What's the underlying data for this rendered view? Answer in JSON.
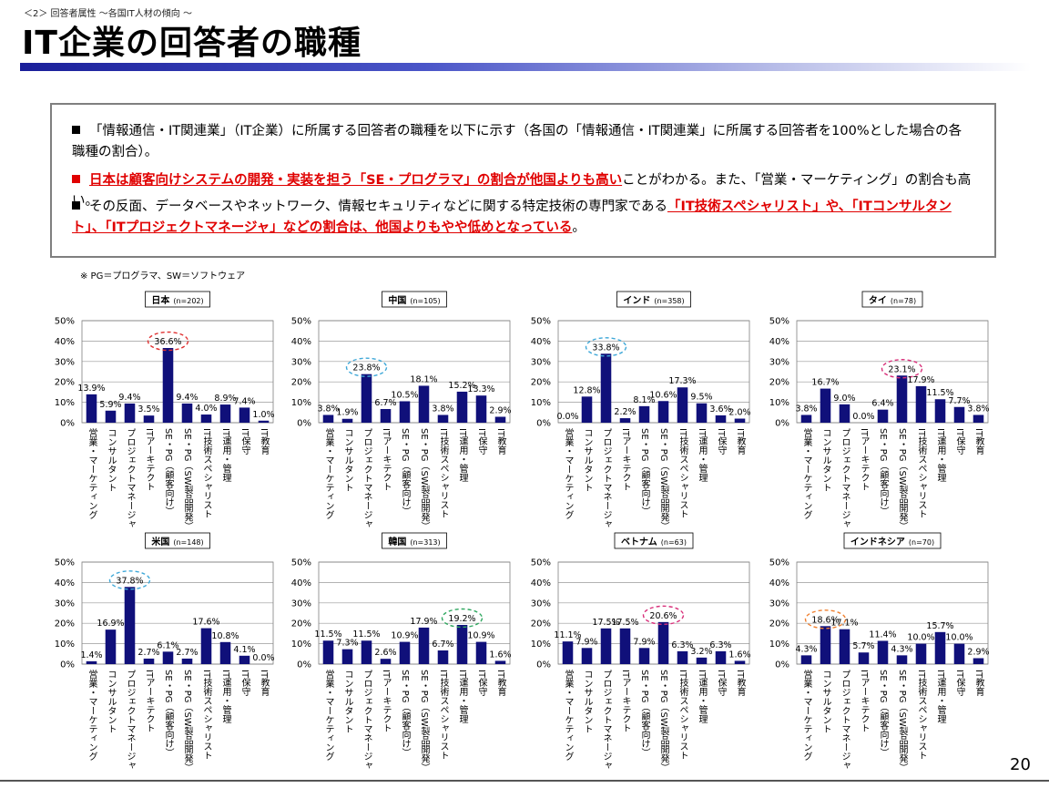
{
  "breadcrumb": "＜2＞ 回答者属性 ～各国IT人材の傾向 ～",
  "page_title": "IT企業の回答者の職種",
  "bullets": [
    {
      "pre": "「情報通信・IT関連業」（IT企業）に所属する回答者の職種を以下に示す（各国の「情報通信・IT関連業」に所属する回答者を100%とした場合の各職種の割合）。",
      "hl": "",
      "post": ""
    },
    {
      "pre": "",
      "hl": "日本は顧客向けシステムの開発・実装を担う「SE・プログラマ」の割合が他国よりも高い",
      "post": "ことがわかる。また、「営業・マーケティング」の割合も高い。"
    },
    {
      "pre": "その反面、データベースやネットワーク、情報セキュリティなどに関する特定技術の専門家である",
      "hl": "「IT技術スペシャリスト」や、「ITコンサルタント」、「ITプロジェクトマネージャ」などの割合は、他国よりもやや低めとなっている",
      "post": "。"
    }
  ],
  "note": "※ PG＝プログラマ、SW＝ソフトウェア",
  "page_number": "20",
  "colors": {
    "bar": "#10107a",
    "highlight": "#e00000",
    "title_bar": "#1a1f9a"
  },
  "chart_data": [
    {
      "type": "bar",
      "title": "日本",
      "n": "(n=202)",
      "ylim": [
        0,
        50
      ],
      "ticks": [
        "0%",
        "10%",
        "20%",
        "30%",
        "40%",
        "50%"
      ],
      "categories": [
        "営業・マーケティング",
        "コンサルタント",
        "プロジェクトマネージャ",
        "ITアーキテクト",
        "SE・PG（顧客向け）",
        "SE・PG（SW製品開発）",
        "IT技術スペシャリスト",
        "IT運用・管理",
        "IT保守",
        "IT教育"
      ],
      "values": [
        13.9,
        5.9,
        9.4,
        3.5,
        36.6,
        9.4,
        4.0,
        8.9,
        7.4,
        1.0
      ],
      "labels": [
        "13.9%",
        "5.9%",
        "9.4%",
        "3.5%",
        "36.6%",
        "9.4%",
        "4.0%",
        "8.9%",
        "7.4%",
        "1.0%"
      ],
      "highlight": 4,
      "highlight_color": "#e03030"
    },
    {
      "type": "bar",
      "title": "中国",
      "n": "(n=105)",
      "ylim": [
        0,
        50
      ],
      "ticks": [
        "0%",
        "10%",
        "20%",
        "30%",
        "40%",
        "50%"
      ],
      "categories": [
        "営業・マーケティング",
        "コンサルタント",
        "プロジェクトマネージャ",
        "ITアーキテクト",
        "SE・PG（顧客向け）",
        "SE・PG（SW製品開発）",
        "IT技術スペシャリスト",
        "IT運用・管理",
        "IT保守",
        "IT教育"
      ],
      "values": [
        3.8,
        1.9,
        23.8,
        6.7,
        10.5,
        18.1,
        3.8,
        15.2,
        13.3,
        2.9
      ],
      "labels": [
        "3.8%",
        "1.9%",
        "23.8%",
        "6.7%",
        "10.5%",
        "18.1%",
        "3.8%",
        "15.2%",
        "13.3%",
        "2.9%"
      ],
      "highlight": 2,
      "highlight_color": "#3fa8d8"
    },
    {
      "type": "bar",
      "title": "インド",
      "n": "(n=358)",
      "ylim": [
        0,
        50
      ],
      "ticks": [
        "0%",
        "10%",
        "20%",
        "30%",
        "40%",
        "50%"
      ],
      "categories": [
        "営業・マーケティング",
        "コンサルタント",
        "プロジェクトマネージャ",
        "ITアーキテクト",
        "SE・PG（顧客向け）",
        "SE・PG（SW製品開発）",
        "IT技術スペシャリスト",
        "IT運用・管理",
        "IT保守",
        "IT教育"
      ],
      "values": [
        0.0,
        12.8,
        33.8,
        2.2,
        8.1,
        10.6,
        17.3,
        9.5,
        3.6,
        2.0
      ],
      "labels": [
        "0.0%",
        "12.8%",
        "33.8%",
        "2.2%",
        "8.1%",
        "10.6%",
        "17.3%",
        "9.5%",
        "3.6%",
        "2.0%"
      ],
      "highlight": 2,
      "highlight_color": "#3fa8d8"
    },
    {
      "type": "bar",
      "title": "タイ",
      "n": "(n=78)",
      "ylim": [
        0,
        50
      ],
      "ticks": [
        "0%",
        "10%",
        "20%",
        "30%",
        "40%",
        "50%"
      ],
      "categories": [
        "営業・マーケティング",
        "コンサルタント",
        "プロジェクトマネージャ",
        "ITアーキテクト",
        "SE・PG（顧客向け）",
        "SE・PG（SW製品開発）",
        "IT技術スペシャリスト",
        "IT運用・管理",
        "IT保守",
        "IT教育"
      ],
      "values": [
        3.8,
        16.7,
        9.0,
        0.0,
        6.4,
        23.1,
        17.9,
        11.5,
        7.7,
        3.8
      ],
      "labels": [
        "3.8%",
        "16.7%",
        "9.0%",
        "0.0%",
        "6.4%",
        "23.1%",
        "17.9%",
        "11.5%",
        "7.7%",
        "3.8%"
      ],
      "highlight": 5,
      "highlight_color": "#d8307a"
    },
    {
      "type": "bar",
      "title": "米国",
      "n": "(n=148)",
      "ylim": [
        0,
        50
      ],
      "ticks": [
        "0%",
        "10%",
        "20%",
        "30%",
        "40%",
        "50%"
      ],
      "categories": [
        "営業・マーケティング",
        "コンサルタント",
        "プロジェクトマネージャ",
        "ITアーキテクト",
        "SE・PG（顧客向け）",
        "SE・PG（SW製品開発）",
        "IT技術スペシャリスト",
        "IT運用・管理",
        "IT保守",
        "IT教育"
      ],
      "values": [
        1.4,
        16.9,
        37.8,
        2.7,
        6.1,
        2.7,
        17.6,
        10.8,
        4.1,
        0.0
      ],
      "labels": [
        "1.4%",
        "16.9%",
        "37.8%",
        "2.7%",
        "6.1%",
        "2.7%",
        "17.6%",
        "10.8%",
        "4.1%",
        "0.0%"
      ],
      "highlight": 2,
      "highlight_color": "#3fa8d8"
    },
    {
      "type": "bar",
      "title": "韓国",
      "n": "(n=313)",
      "ylim": [
        0,
        50
      ],
      "ticks": [
        "0%",
        "10%",
        "20%",
        "30%",
        "40%",
        "50%"
      ],
      "categories": [
        "営業・マーケティング",
        "コンサルタント",
        "プロジェクトマネージャ",
        "ITアーキテクト",
        "SE・PG（顧客向け）",
        "SE・PG（SW製品開発）",
        "IT技術スペシャリスト",
        "IT運用・管理",
        "IT保守",
        "IT教育"
      ],
      "values": [
        11.5,
        7.3,
        11.5,
        2.6,
        10.9,
        17.9,
        6.7,
        19.2,
        10.9,
        1.6
      ],
      "labels": [
        "11.5%",
        "7.3%",
        "11.5%",
        "2.6%",
        "10.9%",
        "17.9%",
        "6.7%",
        "19.2%",
        "10.9%",
        "1.6%"
      ],
      "highlight": 7,
      "highlight_color": "#30a860"
    },
    {
      "type": "bar",
      "title": "ベトナム",
      "n": "(n=63)",
      "ylim": [
        0,
        50
      ],
      "ticks": [
        "0%",
        "10%",
        "20%",
        "30%",
        "40%",
        "50%"
      ],
      "categories": [
        "営業・マーケティング",
        "コンサルタント",
        "プロジェクトマネージャ",
        "ITアーキテクト",
        "SE・PG（顧客向け）",
        "SE・PG（SW製品開発）",
        "IT技術スペシャリスト",
        "IT運用・管理",
        "IT保守",
        "IT教育"
      ],
      "values": [
        11.1,
        7.9,
        17.5,
        17.5,
        7.9,
        20.6,
        6.3,
        3.2,
        6.3,
        1.6
      ],
      "labels": [
        "11.1%",
        "7.9%",
        "17.5%",
        "17.5%",
        "7.9%",
        "20.6%",
        "6.3%",
        "3.2%",
        "6.3%",
        "1.6%"
      ],
      "highlight": 5,
      "highlight_color": "#d8307a"
    },
    {
      "type": "bar",
      "title": "インドネシア",
      "n": "(n=70)",
      "ylim": [
        0,
        50
      ],
      "ticks": [
        "0%",
        "10%",
        "20%",
        "30%",
        "40%",
        "50%"
      ],
      "categories": [
        "営業・マーケティング",
        "コンサルタント",
        "プロジェクトマネージャ",
        "ITアーキテクト",
        "SE・PG（顧客向け）",
        "SE・PG（SW製品開発）",
        "IT技術スペシャリスト",
        "IT運用・管理",
        "IT保守",
        "IT教育"
      ],
      "values": [
        4.3,
        18.6,
        17.1,
        5.7,
        11.4,
        4.3,
        10.0,
        15.7,
        10.0,
        2.9
      ],
      "labels": [
        "4.3%",
        "18.6%",
        "17.1%",
        "5.7%",
        "11.4%",
        "4.3%",
        "10.0%",
        "15.7%",
        "10.0%",
        "2.9%"
      ],
      "highlight": 1,
      "highlight_color": "#f08030"
    }
  ]
}
